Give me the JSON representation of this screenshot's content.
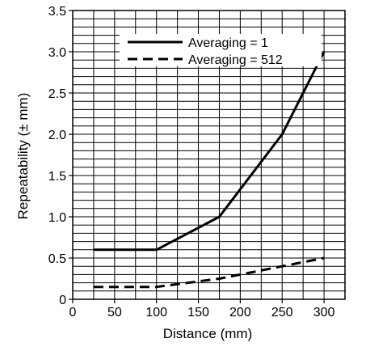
{
  "chart_data": {
    "type": "line",
    "title": "",
    "xlabel": "Distance (mm)",
    "ylabel": "Repeatability (± mm)",
    "xlim": [
      0,
      325
    ],
    "ylim": [
      0,
      3.5
    ],
    "x_ticks": [
      0,
      50,
      100,
      150,
      200,
      250,
      300
    ],
    "x_tick_labels": [
      "0",
      "50",
      "100",
      "150",
      "200",
      "250",
      "300"
    ],
    "y_ticks": [
      0,
      0.5,
      1.0,
      1.5,
      2.0,
      2.5,
      3.0,
      3.5
    ],
    "y_tick_labels": [
      "0",
      "0.5",
      "1.0",
      "1.5",
      "2.0",
      "2.5",
      "3.0",
      "3.5"
    ],
    "grid": true,
    "legend_position": "top-right",
    "series": [
      {
        "name": "Averaging = 1",
        "style": "solid",
        "x": [
          25,
          100,
          175,
          250,
          300
        ],
        "y": [
          0.6,
          0.6,
          1.0,
          2.0,
          3.0
        ]
      },
      {
        "name": "Averaging = 512",
        "style": "dashed",
        "x": [
          25,
          100,
          175,
          250,
          300
        ],
        "y": [
          0.15,
          0.15,
          0.25,
          0.4,
          0.5
        ]
      }
    ]
  }
}
